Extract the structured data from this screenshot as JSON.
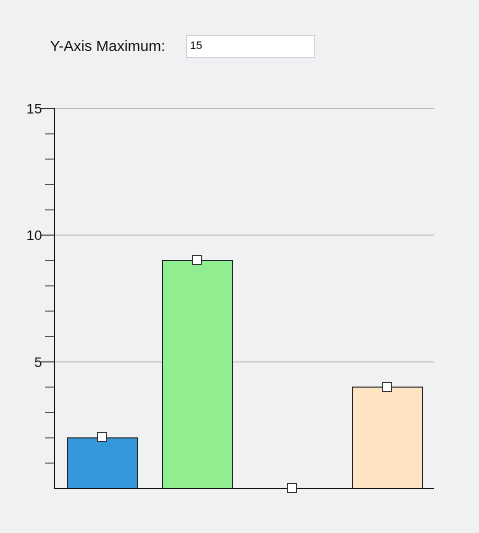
{
  "controls": {
    "ymax_label": "Y-Axis Maximum:",
    "ymax_value": "15"
  },
  "chart_data": {
    "type": "bar",
    "categories": [
      "",
      "",
      "",
      ""
    ],
    "values": [
      2,
      9,
      0,
      4
    ],
    "colors": [
      "#3498db",
      "#90ee90",
      "#90ee90",
      "#ffe4c4"
    ],
    "ylim": [
      0,
      15
    ],
    "major_ticks": [
      5,
      10,
      15
    ],
    "minor_tick_step": 1,
    "grid": true,
    "handles": "square-drag-handle-at-bar-top"
  }
}
